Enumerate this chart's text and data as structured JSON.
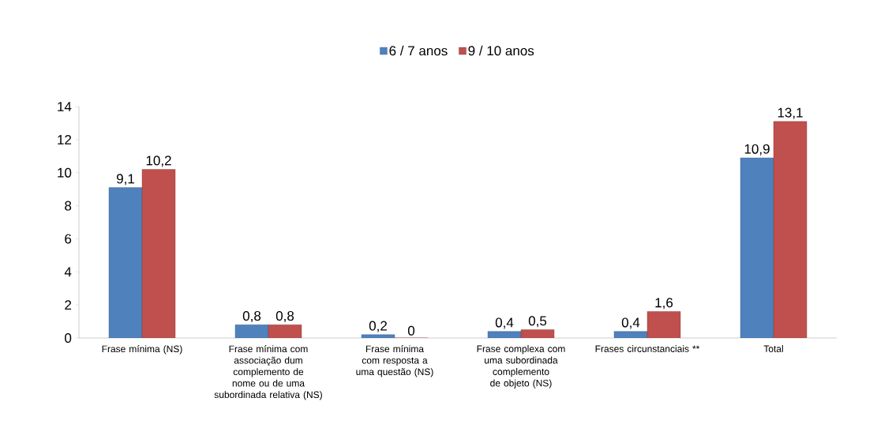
{
  "chart_data": {
    "type": "bar",
    "categories": [
      "Frase mínima (NS)",
      "Frase mínima com associação dum complemento de nome ou de uma subordinada relativa  (NS)",
      "Frase mínima com resposta a uma questão  (NS)",
      "Frase complexa com uma subordinada complemento de objeto  (NS)",
      "Frases circunstanciais **",
      "Total"
    ],
    "series": [
      {
        "name": "6 / 7 anos",
        "color": "#4f81bd",
        "values": [
          9.1,
          0.8,
          0.2,
          0.4,
          0.4,
          10.9
        ],
        "value_labels": [
          "9,1",
          "0,8",
          "0,2",
          "0,4",
          "0,4",
          "10,9"
        ]
      },
      {
        "name": "9 / 10 anos",
        "color": "#c0504d",
        "values": [
          10.2,
          0.8,
          0,
          0.5,
          1.6,
          13.1
        ],
        "value_labels": [
          "10,2",
          "0,8",
          "0",
          "0,5",
          "1,6",
          "13,1"
        ]
      }
    ],
    "ylim": [
      0,
      14
    ],
    "yticks": [
      0,
      2,
      4,
      6,
      8,
      10,
      12,
      14
    ],
    "grid": false,
    "legend": "top"
  }
}
